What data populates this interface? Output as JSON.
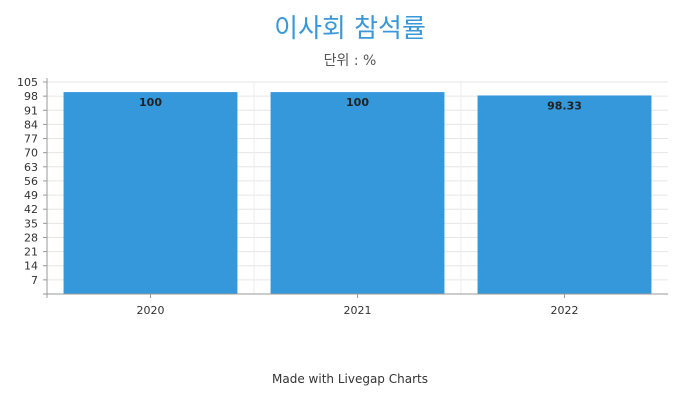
{
  "chart_data": {
    "type": "bar",
    "title": "이사회 참석률",
    "subtitle": "단위 : %",
    "categories": [
      "2020",
      "2021",
      "2022"
    ],
    "values": [
      100,
      100,
      98.33
    ],
    "data_labels": [
      "100",
      "100",
      "98.33"
    ],
    "yticks": [
      7,
      14,
      21,
      28,
      35,
      42,
      49,
      56,
      63,
      70,
      77,
      84,
      91,
      98,
      105
    ],
    "ylim": [
      0,
      105
    ],
    "xlabel": "",
    "ylabel": "",
    "grid": true,
    "bar_color": "#3498db"
  },
  "footer": "Made with Livegap Charts"
}
